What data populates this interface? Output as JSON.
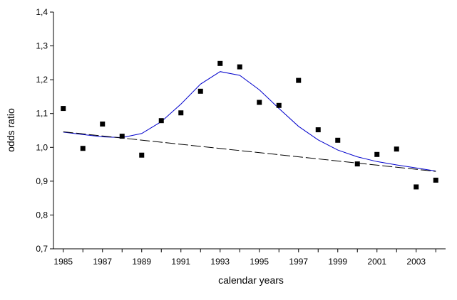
{
  "chart_data": {
    "type": "scatter",
    "xlabel": "calendar years",
    "ylabel": "odds ratio",
    "xlim": [
      1984.5,
      2004.5
    ],
    "ylim": [
      0.7,
      1.4
    ],
    "grid": false,
    "x_ticks": [
      1985,
      1987,
      1989,
      1991,
      1993,
      1995,
      1997,
      1999,
      2001,
      2003
    ],
    "x_tick_labels": [
      "1985",
      "1987",
      "1989",
      "1991",
      "1993",
      "1995",
      "1997",
      "1999",
      "2001",
      "2003"
    ],
    "y_ticks": [
      0.7,
      0.8,
      0.9,
      1.0,
      1.1,
      1.2,
      1.3,
      1.4
    ],
    "y_tick_labels": [
      "0,7",
      "0,8",
      "0,9",
      "1,0",
      "1,1",
      "1,2",
      "1,3",
      "1,4"
    ],
    "series": [
      {
        "kind": "points",
        "marker": "square",
        "color": "#000000",
        "x": [
          1985,
          1986,
          1987,
          1988,
          1989,
          1990,
          1991,
          1992,
          1993,
          1994,
          1995,
          1996,
          1997,
          1998,
          1999,
          2000,
          2001,
          2002,
          2003,
          2004
        ],
        "y": [
          1.115,
          0.997,
          1.069,
          1.033,
          0.977,
          1.079,
          1.102,
          1.166,
          1.248,
          1.238,
          1.133,
          1.124,
          1.198,
          1.052,
          1.021,
          0.951,
          0.979,
          0.995,
          0.883,
          0.903
        ]
      },
      {
        "kind": "line",
        "style": "solid",
        "color": "#0000cc",
        "x": [
          1985,
          1986,
          1987,
          1988,
          1989,
          1990,
          1991,
          1992,
          1993,
          1994,
          1995,
          1996,
          1997,
          1998,
          1999,
          2000,
          2001,
          2002,
          2003,
          2004
        ],
        "y": [
          1.045,
          1.038,
          1.031,
          1.029,
          1.041,
          1.076,
          1.128,
          1.187,
          1.224,
          1.213,
          1.17,
          1.115,
          1.062,
          1.022,
          0.992,
          0.972,
          0.958,
          0.948,
          0.939,
          0.93
        ]
      },
      {
        "kind": "line",
        "style": "dashed",
        "color": "#000000",
        "x": [
          1985,
          2004
        ],
        "y": [
          1.046,
          0.929
        ]
      }
    ]
  }
}
